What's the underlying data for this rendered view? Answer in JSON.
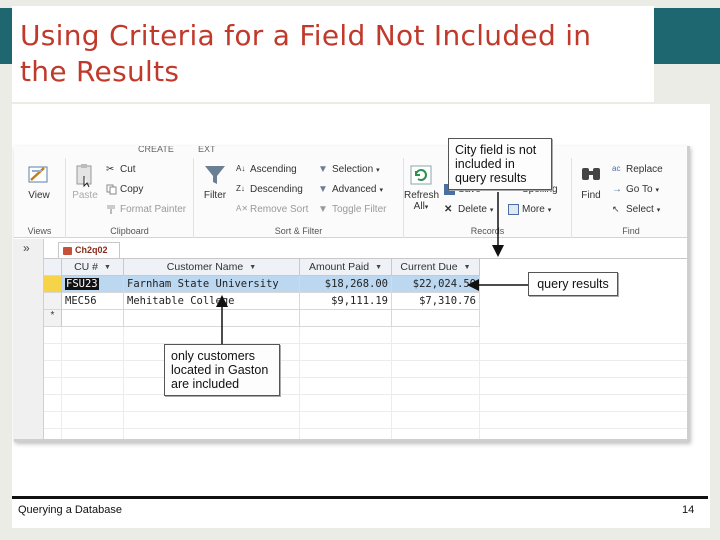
{
  "slide": {
    "title": "Using Criteria for a Field Not Included in the Results",
    "footer_left": "Querying a Database",
    "page_number": "14"
  },
  "ribbon": {
    "tabs": [
      "CREATE",
      "EXT"
    ],
    "views": {
      "view": "View",
      "label": "Views"
    },
    "clipboard": {
      "paste": "Paste",
      "cut": "Cut",
      "copy": "Copy",
      "format_painter": "Format Painter",
      "label": "Clipboard"
    },
    "sort_filter": {
      "filter": "Filter",
      "ascending": "Ascending",
      "descending": "Descending",
      "remove_sort": "Remove Sort",
      "selection": "Selection",
      "advanced": "Advanced",
      "toggle_filter": "Toggle Filter",
      "label": "Sort & Filter"
    },
    "records": {
      "refresh": "Refresh",
      "refresh_all": "All",
      "save": "Save",
      "spelling": "Spelling",
      "delete": "Delete",
      "more": "More",
      "label": "Records"
    },
    "find": {
      "find": "Find",
      "replace": "Replace",
      "go_to": "Go To",
      "select": "Select",
      "label": "Find"
    }
  },
  "document_tab": "Ch2q02",
  "datasheet": {
    "columns": [
      "CU #",
      "Customer Name",
      "Amount Paid",
      "Current Due"
    ],
    "rows": [
      {
        "cu": "FSU23",
        "name": "Farnham State University",
        "paid": "$18,268.00",
        "due": "$22,024.50"
      },
      {
        "cu": "MEC56",
        "name": "Mehitable College",
        "paid": "$9,111.19",
        "due": "$7,310.76"
      }
    ],
    "new_row_marker": "*"
  },
  "callouts": {
    "city_field": "City field is not included in query results",
    "query_results": "query results",
    "gaston": "only customers located in Gaston are included"
  },
  "colors": {
    "title": "#c0392b",
    "accent_bar": "#1f6770",
    "selected_row": "#bcd7f0"
  }
}
